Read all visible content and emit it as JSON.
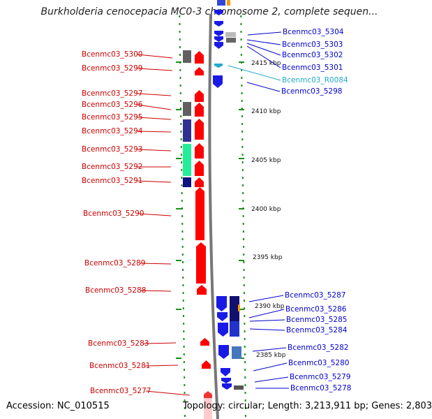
{
  "title": "Burkholderia cenocepacia MC0-3 chromosome 2, complete sequen...",
  "footer": {
    "accession": "Accession: NC_010515",
    "summary": "Topology: circular; Length: 3,213,911 bp; Genes: 2,803"
  },
  "colors": {
    "left_labels": "#cc0000",
    "right_labels": "#0000cc",
    "rna_label": "#22aacc",
    "forward_gene": "#ff0000",
    "reverse_gene": "#1a1ae6",
    "backbone": "#777777",
    "tick_dots": "#1a8f1a"
  },
  "scale": {
    "ticks": [
      "2415 kbp",
      "2410 kbp",
      "2405 kbp",
      "2400 kbp",
      "2395 kbp",
      "2390 kbp",
      "2385 kbp"
    ]
  },
  "left_labels": [
    "Bcenmc03_5300",
    "Bcenmc03_5299",
    "Bcenmc03_5297",
    "Bcenmc03_5296",
    "Bcenmc03_5295",
    "Bcenmc03_5294",
    "Bcenmc03_5293",
    "Bcenmc03_5292",
    "Bcenmc03_5291",
    "Bcenmc03_5290",
    "Bcenmc03_5289",
    "Bcenmc03_5288",
    "Bcenmc03_5283",
    "Bcenmc03_5281",
    "Bcenmc03_5277"
  ],
  "right_labels": [
    "Bcenmc03_5304",
    "Bcenmc03_5303",
    "Bcenmc03_5302",
    "Bcenmc03_5301",
    "Bcenmc03_R0084",
    "Bcenmc03_5298",
    "Bcenmc03_5287",
    "Bcenmc03_5286",
    "Bcenmc03_5285",
    "Bcenmc03_5284",
    "Bcenmc03_5282",
    "Bcenmc03_5280",
    "Bcenmc03_5279",
    "Bcenmc03_5278"
  ]
}
